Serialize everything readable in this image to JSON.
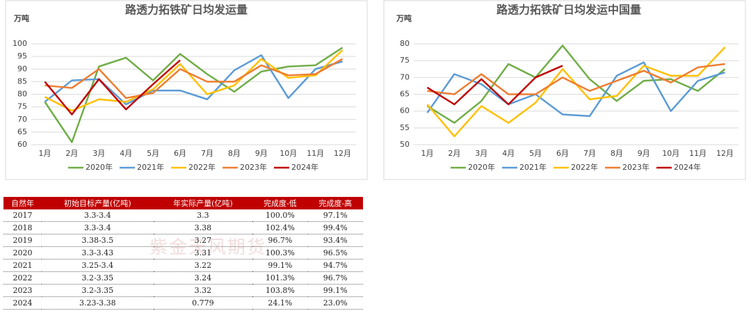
{
  "chart_data": [
    {
      "type": "line",
      "title": "路透力拓铁矿日均发运量",
      "y_label": "万吨",
      "categories": [
        "1月",
        "2月",
        "3月",
        "4月",
        "5月",
        "6月",
        "7月",
        "8月",
        "9月",
        "10月",
        "11月",
        "12月"
      ],
      "ylim": [
        60,
        100
      ],
      "yticks": [
        60,
        65,
        70,
        75,
        80,
        85,
        90,
        95,
        100
      ],
      "grid": true,
      "legend": "bottom",
      "series": [
        {
          "name": "2020年",
          "color": "#70ad47",
          "values": [
            77,
            61,
            91,
            94.5,
            85.5,
            96,
            88,
            81,
            89,
            91,
            91.5,
            98.5
          ]
        },
        {
          "name": "2021年",
          "color": "#5b9bd5",
          "values": [
            77,
            85.5,
            86,
            76,
            81.5,
            81.5,
            78,
            89.5,
            95.5,
            78.5,
            90,
            93
          ]
        },
        {
          "name": "2022年",
          "color": "#ffc000",
          "values": [
            79,
            73.5,
            78,
            77,
            82,
            92,
            80,
            83.5,
            94,
            86.5,
            87.5,
            97.5
          ]
        },
        {
          "name": "2023年",
          "color": "#ed7d31",
          "values": [
            83.5,
            82.5,
            90,
            78.5,
            80.5,
            90,
            85,
            85,
            91.5,
            87.5,
            88,
            94
          ]
        },
        {
          "name": "2024年",
          "color": "#c00000",
          "values": [
            85,
            72,
            86,
            74,
            84,
            93.5,
            null,
            null,
            null,
            null,
            null,
            null
          ]
        }
      ]
    },
    {
      "type": "line",
      "title": "路透力拓铁矿日均发运中国量",
      "y_label": "万吨",
      "categories": [
        "1月",
        "2月",
        "3月",
        "4月",
        "5月",
        "6月",
        "7月",
        "8月",
        "9月",
        "10月",
        "11月",
        "12月"
      ],
      "ylim": [
        50,
        80
      ],
      "yticks": [
        50,
        55,
        60,
        65,
        70,
        75,
        80
      ],
      "grid": true,
      "legend": "bottom",
      "series": [
        {
          "name": "2020年",
          "color": "#70ad47",
          "values": [
            61.5,
            56.5,
            63,
            74,
            70,
            79.5,
            69.5,
            63,
            69,
            69.5,
            66,
            72.5
          ]
        },
        {
          "name": "2021年",
          "color": "#5b9bd5",
          "values": [
            59.5,
            71,
            68,
            62,
            65,
            59,
            58.5,
            70.5,
            74.5,
            60,
            69,
            71.5
          ]
        },
        {
          "name": "2022年",
          "color": "#ffc000",
          "values": [
            62,
            52.5,
            61.5,
            56.5,
            62.5,
            72.5,
            63.5,
            64.5,
            73.5,
            70.5,
            70.5,
            79
          ]
        },
        {
          "name": "2023年",
          "color": "#ed7d31",
          "values": [
            66,
            65,
            71,
            65,
            65,
            70,
            66,
            69,
            72,
            68.5,
            73,
            74
          ]
        },
        {
          "name": "2024年",
          "color": "#c00000",
          "values": [
            67,
            62,
            69.5,
            62,
            70,
            73.5,
            null,
            null,
            null,
            null,
            null,
            null
          ]
        }
      ]
    }
  ],
  "table": {
    "header": [
      "自然年",
      "初始目标产量(亿吨)",
      "年实际产量(亿吨)",
      "完成度-低",
      "完成度-高"
    ],
    "rows": [
      [
        "2017",
        "3.3-3.4",
        "3.3",
        "100.0%",
        "97.1%"
      ],
      [
        "2018",
        "3.3-3.4",
        "3.38",
        "102.4%",
        "99.4%"
      ],
      [
        "2019",
        "3.38-3.5",
        "3.27",
        "96.7%",
        "93.4%"
      ],
      [
        "2020",
        "3.3-3.43",
        "3.31",
        "100.3%",
        "96.5%"
      ],
      [
        "2021",
        "3.25-3.4",
        "3.22",
        "99.1%",
        "94.7%"
      ],
      [
        "2022",
        "3.2-3.35",
        "3.24",
        "101.3%",
        "96.7%"
      ],
      [
        "2023",
        "3.2-3.35",
        "3.32",
        "103.8%",
        "99.1%"
      ],
      [
        "2024",
        "3.23-3.38",
        "0.779",
        "24.1%",
        "23.0%"
      ]
    ],
    "watermark": "紫金天风期货"
  }
}
